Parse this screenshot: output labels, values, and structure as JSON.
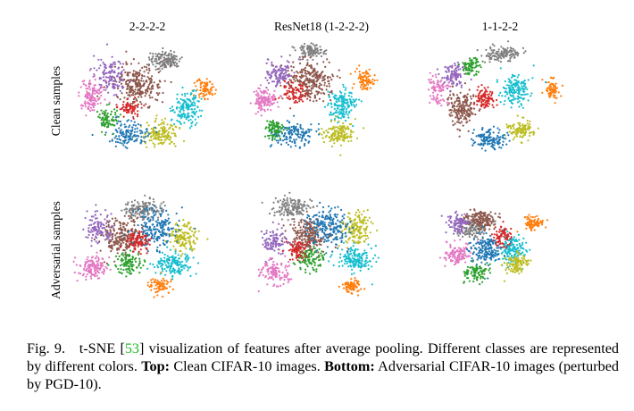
{
  "columns": [
    "2-2-2-2",
    "ResNet18 (1-2-2-2)",
    "1-1-2-2"
  ],
  "rows": [
    "Clean samples",
    "Adversarial samples"
  ],
  "class_colors": [
    "#7f7f7f",
    "#8c564b",
    "#9467bd",
    "#e377c2",
    "#ff7f0e",
    "#17becf",
    "#bcbd22",
    "#1f77b4",
    "#2ca02c",
    "#d62728"
  ],
  "caption": {
    "fig_label": "Fig. 9.",
    "text_before_ref": "t-SNE [",
    "ref": "53",
    "text_after_ref": "] visualization of features after average pooling. Different classes are represented by different colors. ",
    "top_label": "Top:",
    "top_text": " Clean CIFAR-10 images. ",
    "bottom_label": "Bottom:",
    "bottom_text": " Adversarial CIFAR-10 images (perturbed by PGD-10)."
  }
}
